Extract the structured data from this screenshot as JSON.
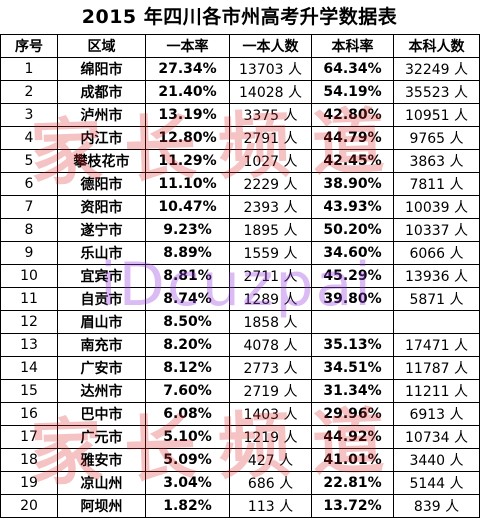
{
  "title": "2015 年四川各市州高考升学数据表",
  "headers": [
    "序号",
    "区域",
    "一本率",
    "一本人数",
    "本科率",
    "本科人数"
  ],
  "rows": [
    [
      "1",
      "绵阳市",
      "27.34%",
      "13703 人",
      "64.34%",
      "32249 人"
    ],
    [
      "2",
      "成都市",
      "21.40%",
      "14028 人",
      "54.19%",
      "35523 人"
    ],
    [
      "3",
      "泸州市",
      "13.19%",
      "3375 人",
      "42.80%",
      "10951 人"
    ],
    [
      "4",
      "内江市",
      "12.80%",
      "2791 人",
      "44.79%",
      "9765 人"
    ],
    [
      "5",
      "攀枝花市",
      "11.29%",
      "1027 人",
      "42.45%",
      "3863 人"
    ],
    [
      "6",
      "德阳市",
      "11.10%",
      "2229 人",
      "38.90%",
      "7811 人"
    ],
    [
      "7",
      "资阳市",
      "10.47%",
      "2393 人",
      "43.93%",
      "10039 人"
    ],
    [
      "8",
      "遂宁市",
      "9.23%",
      "1895 人",
      "50.20%",
      "10337 人"
    ],
    [
      "9",
      "乐山市",
      "8.89%",
      "1559 人",
      "34.60%",
      "6066 人"
    ],
    [
      "10",
      "宜宾市",
      "8.81%",
      "2711 人",
      "45.29%",
      "13936 人"
    ],
    [
      "11",
      "自贡市",
      "8.74%",
      "1289 人",
      "39.80%",
      "5871 人"
    ],
    [
      "12",
      "眉山市",
      "8.50%",
      "1858 人",
      "",
      ""
    ],
    [
      "13",
      "南充市",
      "8.20%",
      "4078 人",
      "35.13%",
      "17471 人"
    ],
    [
      "14",
      "广安市",
      "8.12%",
      "2773 人",
      "34.51%",
      "11787 人"
    ],
    [
      "15",
      "达州市",
      "7.60%",
      "2719 人",
      "31.34%",
      "11211 人"
    ],
    [
      "16",
      "巴中市",
      "6.08%",
      "1403 人",
      "29.96%",
      "6913 人"
    ],
    [
      "17",
      "广元市",
      "5.10%",
      "1219 人",
      "44.92%",
      "10734 人"
    ],
    [
      "18",
      "雅安市",
      "5.09%",
      "427 人",
      "41.01%",
      "3440 人"
    ],
    [
      "19",
      "凉山州",
      "3.04%",
      "686 人",
      "22.81%",
      "5144 人"
    ],
    [
      "20",
      "阿坝州",
      "1.82%",
      "113 人",
      "13.72%",
      "839 人"
    ]
  ],
  "watermarks": {
    "top": "家长频道",
    "middle": "iDcuzpai",
    "bottom": "家长频道"
  }
}
